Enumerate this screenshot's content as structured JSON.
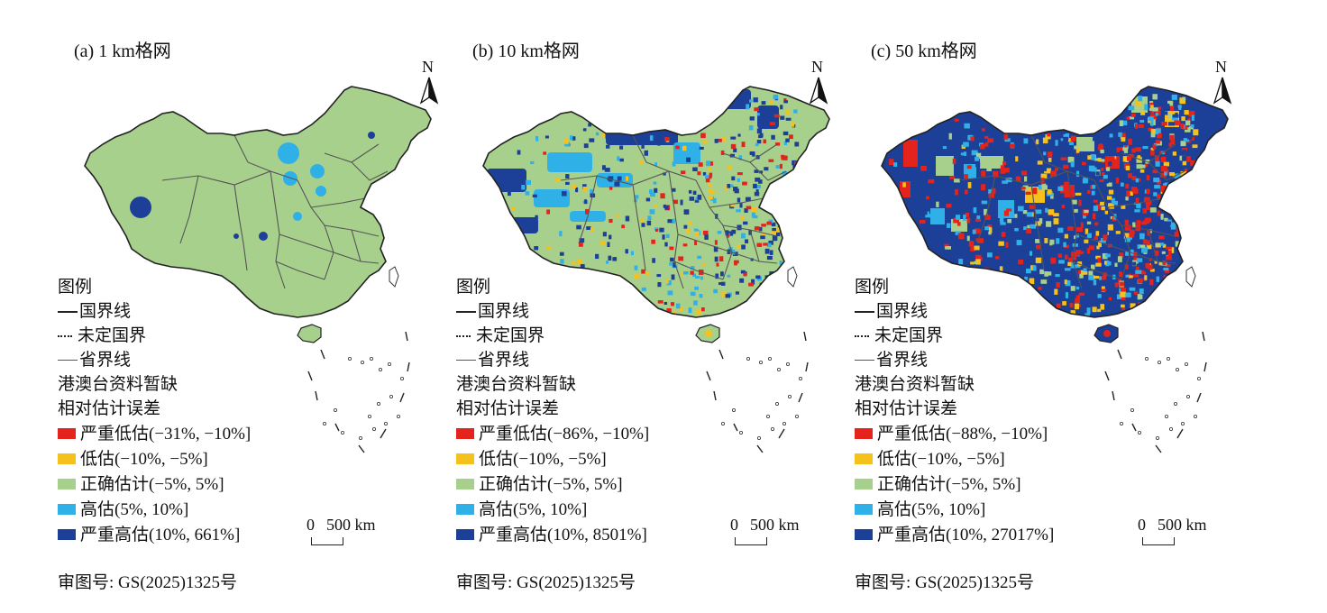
{
  "legend_title": "图例",
  "boundary_items": [
    "国界线",
    "未定国界",
    "省界线",
    "港澳台资料暂缺"
  ],
  "error_title": "相对估计误差",
  "class_colors": [
    "#e4231d",
    "#f5c11c",
    "#a8d08d",
    "#2fb0e7",
    "#1c3f97"
  ],
  "scale": {
    "label_zero": "0",
    "label_value": "500 km"
  },
  "north_label": "N",
  "approval_no": "审图号: GS(2025)1325号",
  "panels": [
    {
      "title": "(a) 1 km格网",
      "classes": [
        "严重低估(−31%, −10%]",
        "低估(−10%, −5%]",
        "正确估计(−5%, 5%]",
        "高估(5%, 10%]",
        "严重高估(10%, 661%]"
      ]
    },
    {
      "title": "(b) 10 km格网",
      "classes": [
        "严重低估(−86%, −10%]",
        "低估(−10%, −5%]",
        "正确估计(−5%, 5%]",
        "高估(5%, 10%]",
        "严重高估(10%, 8501%]"
      ]
    },
    {
      "title": "(c) 50 km格网",
      "classes": [
        "严重低估(−88%, −10%]",
        "低估(−10%, −5%]",
        "正确估计(−5%, 5%]",
        "高估(5%, 10%]",
        "严重高估(10%, 27017%]"
      ]
    }
  ]
}
